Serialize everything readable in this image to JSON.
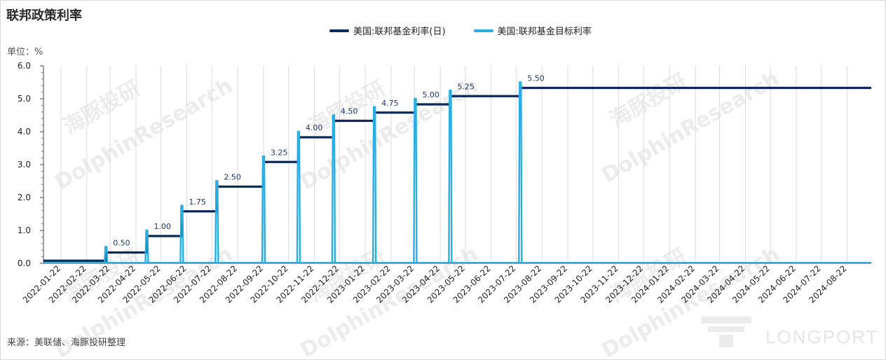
{
  "header": {
    "title": "联邦政策利率"
  },
  "unit_label": "单位：%",
  "source": "来源：美联储、海豚投研整理",
  "watermarks": [
    "海豚投研",
    "DolphinResearch"
  ],
  "logo_text": "LONGPORT",
  "colors": {
    "effective": "#0b2a5b",
    "target": "#29aee3",
    "grid": "#dcdcdc"
  },
  "chart_data": {
    "type": "line",
    "title": "联邦政策利率",
    "ylabel": "单位：%",
    "ylim": [
      0,
      6
    ],
    "yticks": [
      "0.0",
      "1.0",
      "2.0",
      "3.0",
      "4.0",
      "5.0",
      "6.0"
    ],
    "x_range": [
      "2022-01-01",
      "2024-09-20"
    ],
    "x_tick_labels": [
      "2022-01-22",
      "2022-02-22",
      "2022-03-22",
      "2022-04-22",
      "2022-05-22",
      "2022-06-22",
      "2022-07-22",
      "2022-08-22",
      "2022-09-22",
      "2022-10-22",
      "2022-11-22",
      "2022-12-22",
      "2023-01-22",
      "2023-02-22",
      "2023-03-22",
      "2023-04-22",
      "2023-05-22",
      "2023-06-22",
      "2023-07-22",
      "2023-08-22",
      "2023-09-22",
      "2023-10-22",
      "2023-11-22",
      "2023-12-22",
      "2024-01-22",
      "2024-02-22",
      "2024-03-22",
      "2024-04-22",
      "2024-05-22",
      "2024-06-22",
      "2024-07-22",
      "2024-08-22"
    ],
    "series": [
      {
        "name": "美国:联邦基金利率(日)",
        "style": "step-line",
        "points": [
          [
            "2022-01-01",
            0.08
          ],
          [
            "2022-03-17",
            0.33
          ],
          [
            "2022-05-05",
            0.83
          ],
          [
            "2022-06-16",
            1.58
          ],
          [
            "2022-07-28",
            2.33
          ],
          [
            "2022-09-22",
            3.08
          ],
          [
            "2022-11-03",
            3.83
          ],
          [
            "2022-12-15",
            4.33
          ],
          [
            "2023-02-02",
            4.58
          ],
          [
            "2023-03-23",
            4.83
          ],
          [
            "2023-05-04",
            5.08
          ],
          [
            "2023-07-27",
            5.33
          ],
          [
            "2024-09-20",
            5.33
          ]
        ]
      },
      {
        "name": "美国:联邦基金目标利率",
        "style": "spikes",
        "points": [
          [
            "2022-03-17",
            0.5
          ],
          [
            "2022-05-05",
            1.0
          ],
          [
            "2022-06-16",
            1.75
          ],
          [
            "2022-07-28",
            2.5
          ],
          [
            "2022-09-22",
            3.25
          ],
          [
            "2022-11-03",
            4.0
          ],
          [
            "2022-12-15",
            4.5
          ],
          [
            "2023-02-02",
            4.75
          ],
          [
            "2023-03-23",
            5.0
          ],
          [
            "2023-05-04",
            5.25
          ],
          [
            "2023-07-27",
            5.5
          ]
        ],
        "data_labels": [
          "0.50",
          "1.00",
          "1.75",
          "2.50",
          "3.25",
          "4.00",
          "4.50",
          "4.75",
          "5.00",
          "5.25",
          "5.50"
        ]
      }
    ],
    "grid": {
      "vertical": true,
      "horizontal": false
    },
    "legend_position": "top-center"
  }
}
